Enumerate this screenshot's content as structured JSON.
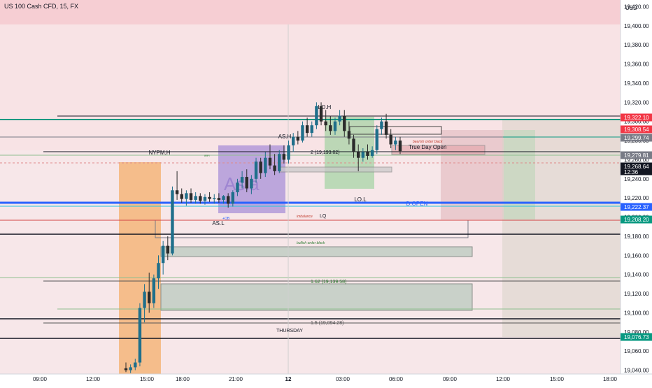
{
  "chart_data": {
    "type": "candlestick",
    "title": "US 100 Cash CFD, 15, FX",
    "currency": "USD",
    "ylim": [
      19035,
      19460
    ],
    "y_ticks": [
      19040,
      19060,
      19080,
      19100,
      19120,
      19140,
      19160,
      19180,
      19200,
      19220,
      19240,
      19260,
      19280,
      19300,
      19320,
      19340,
      19360,
      19380,
      19400,
      19420
    ],
    "y_tick_labels": [
      "19,040.00",
      "19,060.00",
      "19,080.00",
      "19,100.00",
      "19,120.00",
      "19,140.00",
      "19,160.00",
      "19,180.00",
      "19,200.00",
      "19,220.00",
      "19,240.00",
      "19,260.00",
      "19,280.00",
      "19,300.00",
      "19,320.00",
      "19,340.00",
      "19,360.00",
      "19,380.00",
      "19,400.00",
      "19,420.00"
    ],
    "x_tick_labels": [
      "09:00",
      "12:00",
      "15:00",
      "18:00",
      "21:00",
      "12",
      "03:00",
      "06:00",
      "09:00",
      "12:00",
      "15:00",
      "18:00"
    ],
    "price_tags": [
      {
        "label": "19,322.10",
        "color": "#f23645"
      },
      {
        "label": "19,308.54",
        "color": "#f23645"
      },
      {
        "label": "19,299.74",
        "color": "#787b86"
      },
      {
        "label": "19,279.81",
        "color": "#787b86"
      },
      {
        "label": "19,268.64",
        "sub": "12:36",
        "color": "#131722"
      },
      {
        "label": "19,222.37",
        "color": "#2962ff"
      },
      {
        "label": "19,208.20",
        "color": "#089981"
      },
      {
        "label": "19,076.73",
        "color": "#089981"
      }
    ],
    "annotations": [
      "LO.H",
      "AS.H",
      "NYPM.H",
      "AS.L",
      "LO.L",
      "D.OPEN",
      "True Day Open",
      "bearish order black",
      "bullish order block",
      "imbalance",
      "LQ",
      "1.62 (19,139.58)",
      "1.5 (19,094.28)",
      "2 (19,193.02)",
      "THURSDAY",
      "Asia",
      "+OB",
      "IRFI"
    ],
    "candles": [
      {
        "o": 19042,
        "h": 19048,
        "l": 19038,
        "c": 19040
      },
      {
        "o": 19040,
        "h": 19046,
        "l": 19037,
        "c": 19043
      },
      {
        "o": 19043,
        "h": 19052,
        "l": 19040,
        "c": 19048
      },
      {
        "o": 19048,
        "h": 19110,
        "l": 19044,
        "c": 19105
      },
      {
        "o": 19105,
        "h": 19130,
        "l": 19090,
        "c": 19122
      },
      {
        "o": 19122,
        "h": 19142,
        "l": 19100,
        "c": 19110
      },
      {
        "o": 19110,
        "h": 19140,
        "l": 19105,
        "c": 19136
      },
      {
        "o": 19136,
        "h": 19160,
        "l": 19125,
        "c": 19152
      },
      {
        "o": 19152,
        "h": 19175,
        "l": 19140,
        "c": 19170
      },
      {
        "o": 19170,
        "h": 19180,
        "l": 19155,
        "c": 19162
      },
      {
        "o": 19162,
        "h": 19232,
        "l": 19160,
        "c": 19228
      },
      {
        "o": 19228,
        "h": 19248,
        "l": 19218,
        "c": 19224
      },
      {
        "o": 19224,
        "h": 19230,
        "l": 19215,
        "c": 19219
      },
      {
        "o": 19219,
        "h": 19228,
        "l": 19212,
        "c": 19225
      },
      {
        "o": 19225,
        "h": 19230,
        "l": 19215,
        "c": 19218
      },
      {
        "o": 19218,
        "h": 19226,
        "l": 19214,
        "c": 19222
      },
      {
        "o": 19222,
        "h": 19225,
        "l": 19214,
        "c": 19217
      },
      {
        "o": 19217,
        "h": 19224,
        "l": 19213,
        "c": 19221
      },
      {
        "o": 19221,
        "h": 19226,
        "l": 19216,
        "c": 19219
      },
      {
        "o": 19219,
        "h": 19224,
        "l": 19214,
        "c": 19220
      },
      {
        "o": 19220,
        "h": 19225,
        "l": 19215,
        "c": 19218
      },
      {
        "o": 19218,
        "h": 19223,
        "l": 19214,
        "c": 19222
      },
      {
        "o": 19222,
        "h": 19225,
        "l": 19210,
        "c": 19214
      },
      {
        "o": 19214,
        "h": 19228,
        "l": 19211,
        "c": 19226
      },
      {
        "o": 19226,
        "h": 19240,
        "l": 19222,
        "c": 19236
      },
      {
        "o": 19236,
        "h": 19248,
        "l": 19230,
        "c": 19242
      },
      {
        "o": 19242,
        "h": 19250,
        "l": 19226,
        "c": 19230
      },
      {
        "o": 19230,
        "h": 19244,
        "l": 19224,
        "c": 19240
      },
      {
        "o": 19240,
        "h": 19262,
        "l": 19236,
        "c": 19258
      },
      {
        "o": 19258,
        "h": 19262,
        "l": 19240,
        "c": 19246
      },
      {
        "o": 19246,
        "h": 19268,
        "l": 19242,
        "c": 19262
      },
      {
        "o": 19262,
        "h": 19276,
        "l": 19250,
        "c": 19254
      },
      {
        "o": 19254,
        "h": 19266,
        "l": 19244,
        "c": 19248
      },
      {
        "o": 19248,
        "h": 19270,
        "l": 19246,
        "c": 19266
      },
      {
        "o": 19266,
        "h": 19275,
        "l": 19256,
        "c": 19260
      },
      {
        "o": 19260,
        "h": 19280,
        "l": 19256,
        "c": 19275
      },
      {
        "o": 19275,
        "h": 19288,
        "l": 19268,
        "c": 19284
      },
      {
        "o": 19284,
        "h": 19290,
        "l": 19276,
        "c": 19280
      },
      {
        "o": 19280,
        "h": 19300,
        "l": 19278,
        "c": 19296
      },
      {
        "o": 19296,
        "h": 19304,
        "l": 19284,
        "c": 19288
      },
      {
        "o": 19288,
        "h": 19300,
        "l": 19284,
        "c": 19296
      },
      {
        "o": 19296,
        "h": 19320,
        "l": 19292,
        "c": 19316
      },
      {
        "o": 19316,
        "h": 19320,
        "l": 19296,
        "c": 19300
      },
      {
        "o": 19300,
        "h": 19312,
        "l": 19290,
        "c": 19296
      },
      {
        "o": 19296,
        "h": 19306,
        "l": 19286,
        "c": 19290
      },
      {
        "o": 19290,
        "h": 19304,
        "l": 19286,
        "c": 19300
      },
      {
        "o": 19300,
        "h": 19312,
        "l": 19296,
        "c": 19306
      },
      {
        "o": 19306,
        "h": 19312,
        "l": 19284,
        "c": 19290
      },
      {
        "o": 19290,
        "h": 19300,
        "l": 19276,
        "c": 19282
      },
      {
        "o": 19282,
        "h": 19286,
        "l": 19262,
        "c": 19268
      },
      {
        "o": 19268,
        "h": 19276,
        "l": 19248,
        "c": 19262
      },
      {
        "o": 19262,
        "h": 19272,
        "l": 19258,
        "c": 19268
      },
      {
        "o": 19268,
        "h": 19276,
        "l": 19260,
        "c": 19264
      },
      {
        "o": 19264,
        "h": 19274,
        "l": 19262,
        "c": 19270
      },
      {
        "o": 19270,
        "h": 19296,
        "l": 19266,
        "c": 19292
      },
      {
        "o": 19292,
        "h": 19304,
        "l": 19286,
        "c": 19300
      },
      {
        "o": 19300,
        "h": 19308,
        "l": 19282,
        "c": 19286
      },
      {
        "o": 19286,
        "h": 19292,
        "l": 19272,
        "c": 19276
      },
      {
        "o": 19276,
        "h": 19284,
        "l": 19270,
        "c": 19280
      },
      {
        "o": 19280,
        "h": 19284,
        "l": 19266,
        "c": 19269
      }
    ]
  }
}
